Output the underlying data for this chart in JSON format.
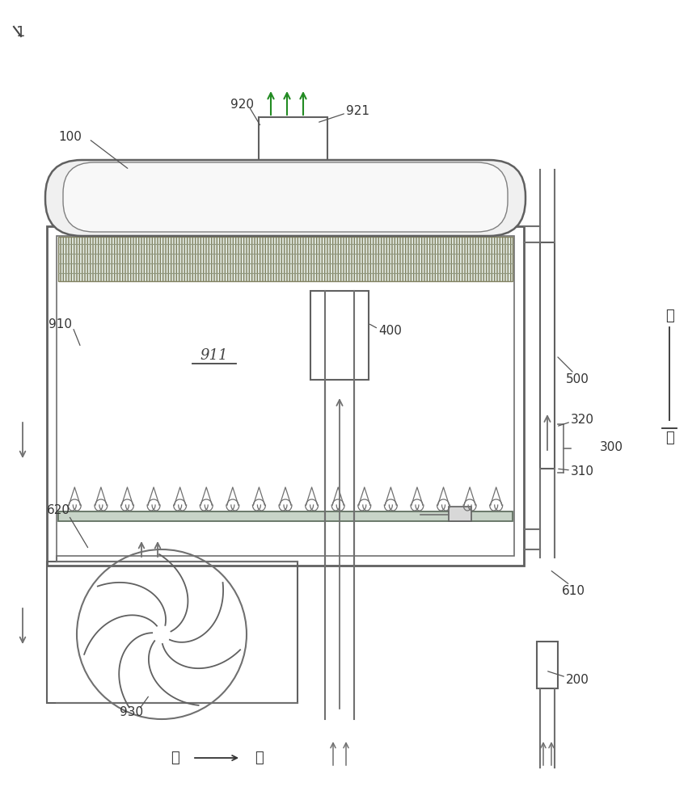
{
  "bg_color": "#ffffff",
  "line_color": "#707070",
  "label_100": "100",
  "label_911": "911",
  "label_920": "920",
  "label_921": "921",
  "label_910": "910",
  "label_930": "930",
  "label_620": "620",
  "label_400": "400",
  "label_300": "300",
  "label_310": "310",
  "label_320": "320",
  "label_500": "500",
  "label_610": "610",
  "label_200": "200",
  "label_left": "左",
  "label_right": "右",
  "label_up": "上",
  "label_down": "下",
  "note_1": "1"
}
